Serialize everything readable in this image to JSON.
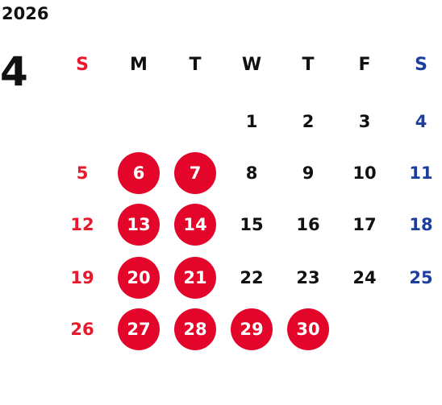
{
  "calendar": {
    "year": "2026",
    "month": "4",
    "weekdays": [
      "S",
      "M",
      "T",
      "W",
      "T",
      "F",
      "S"
    ],
    "weeks": [
      [
        "",
        "",
        "",
        "1",
        "2",
        "3",
        "4"
      ],
      [
        "5",
        "6",
        "7",
        "8",
        "9",
        "10",
        "11"
      ],
      [
        "12",
        "13",
        "14",
        "15",
        "16",
        "17",
        "18"
      ],
      [
        "19",
        "20",
        "21",
        "22",
        "23",
        "24",
        "25"
      ],
      [
        "26",
        "27",
        "28",
        "29",
        "30",
        "",
        ""
      ]
    ],
    "highlighted_days": [
      "6",
      "7",
      "13",
      "14",
      "20",
      "21",
      "27",
      "28",
      "29",
      "30"
    ],
    "colors": {
      "sunday": "#e8192d",
      "saturday": "#1c3f9e",
      "highlight": "#e3062a",
      "text": "#111111"
    }
  }
}
